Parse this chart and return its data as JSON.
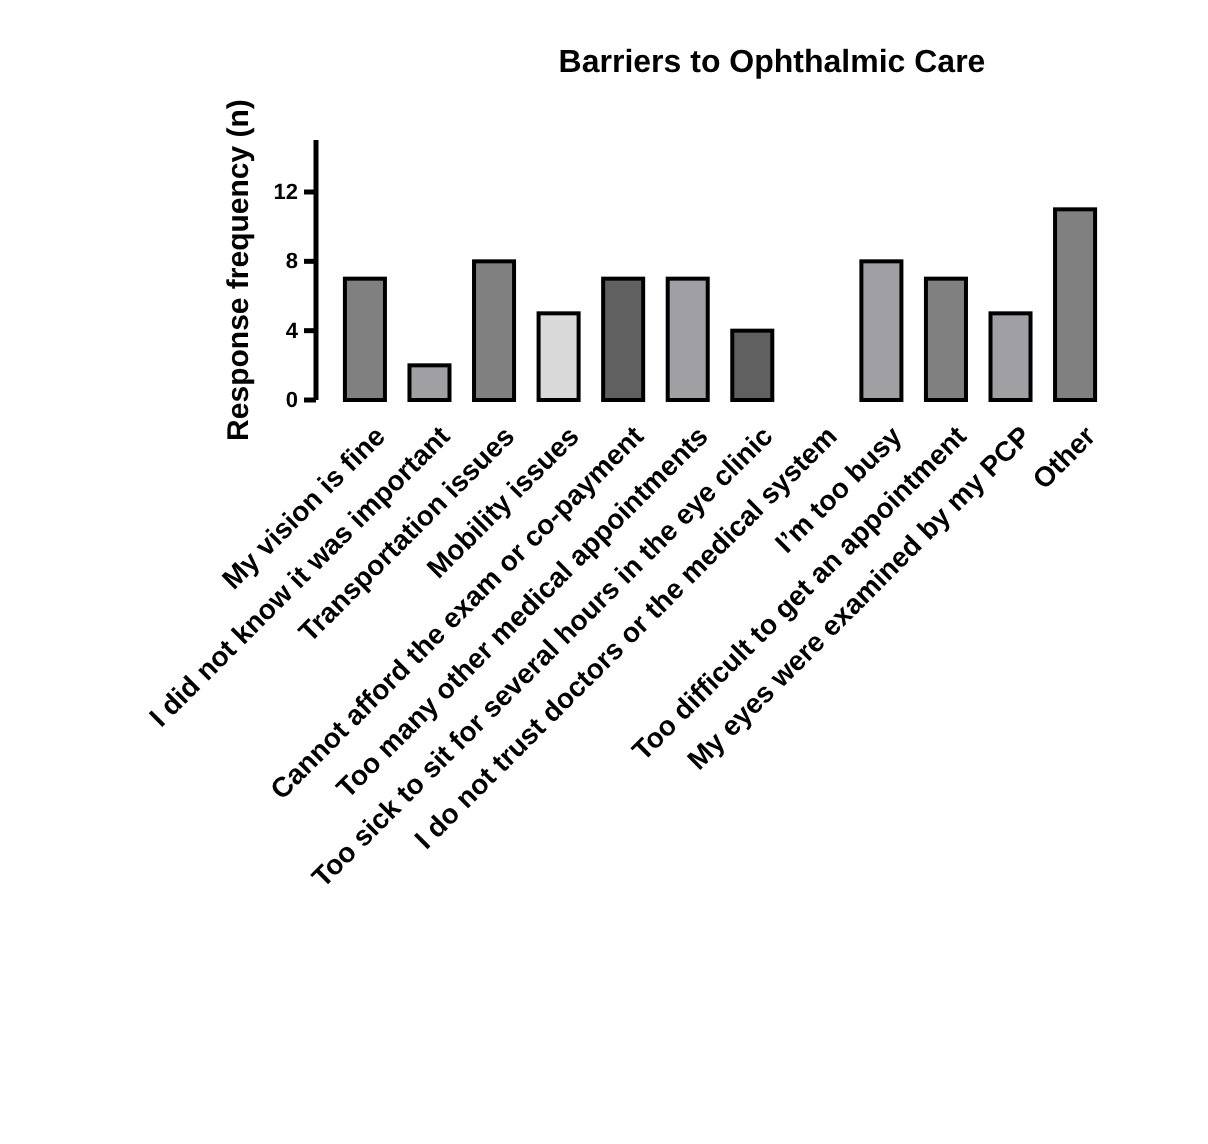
{
  "chart_data": {
    "type": "bar",
    "title": "Barriers to Ophthalmic Care",
    "ylabel": "Response frequency (n)",
    "categories": [
      "My vision is fine",
      "I did not know it was important",
      "Transportation issues",
      "Mobility issues",
      "Cannot afford the exam or co-payment",
      "Too many other medical appointments",
      "Too sick to sit for several hours in the eye clinic",
      "I do not trust doctors or the medical system",
      "I’m too busy",
      "Too difficult to get an appointment",
      "My eyes were examined by my PCP",
      "Other"
    ],
    "values": [
      7,
      2,
      8,
      5,
      7,
      7,
      4,
      0,
      8,
      7,
      5,
      11
    ],
    "colors": [
      "#808080",
      "#a0a0a4",
      "#808080",
      "#d9d9d9",
      "#606060",
      "#a0a0a4",
      "#606060",
      "#808080",
      "#a0a0a4",
      "#808080",
      "#a0a0a4",
      "#808080"
    ],
    "ylim": [
      0,
      15
    ],
    "yticks": [
      0,
      4,
      8,
      12
    ],
    "grid": false
  }
}
